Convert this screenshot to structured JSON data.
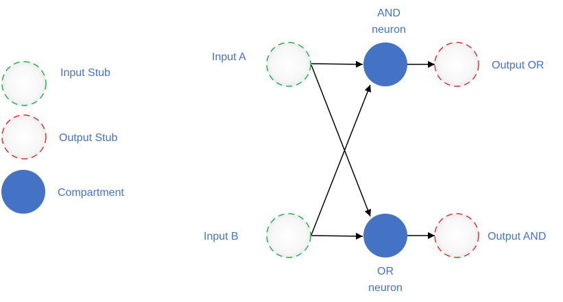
{
  "colors": {
    "input_stub_stroke": "#22b14c",
    "output_stub_stroke": "#e0302f",
    "compartment_fill": "#4472c4",
    "label_text": "#4472c4",
    "edge": "#000000",
    "stub_fill": "#f2f2f2"
  },
  "legend": {
    "input_stub": "Input Stub",
    "output_stub": "Output Stub",
    "compartment": "Compartment"
  },
  "nodes": {
    "input_a": "Input A",
    "input_b": "Input B",
    "and_neuron": [
      "AND",
      "neuron"
    ],
    "or_neuron": [
      "OR",
      "neuron"
    ],
    "output_or": "Output OR",
    "output_and": "Output AND"
  },
  "edges": [
    {
      "from": "Input A",
      "to": "AND neuron"
    },
    {
      "from": "Input A",
      "to": "OR neuron"
    },
    {
      "from": "Input B",
      "to": "AND neuron"
    },
    {
      "from": "Input B",
      "to": "OR neuron"
    },
    {
      "from": "AND neuron",
      "to": "Output OR"
    },
    {
      "from": "OR neuron",
      "to": "Output AND"
    }
  ]
}
